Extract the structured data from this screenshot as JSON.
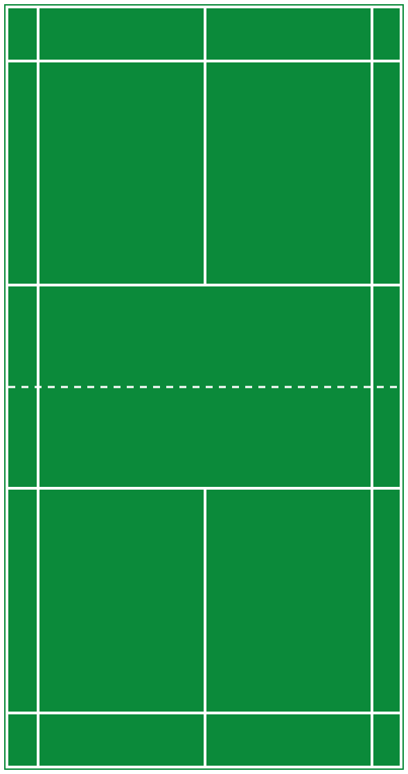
{
  "diagram": {
    "subject": "badminton-court",
    "surface_color": "#0b8a3a",
    "line_color": "#ffffff",
    "background_color": "#ffffff"
  }
}
